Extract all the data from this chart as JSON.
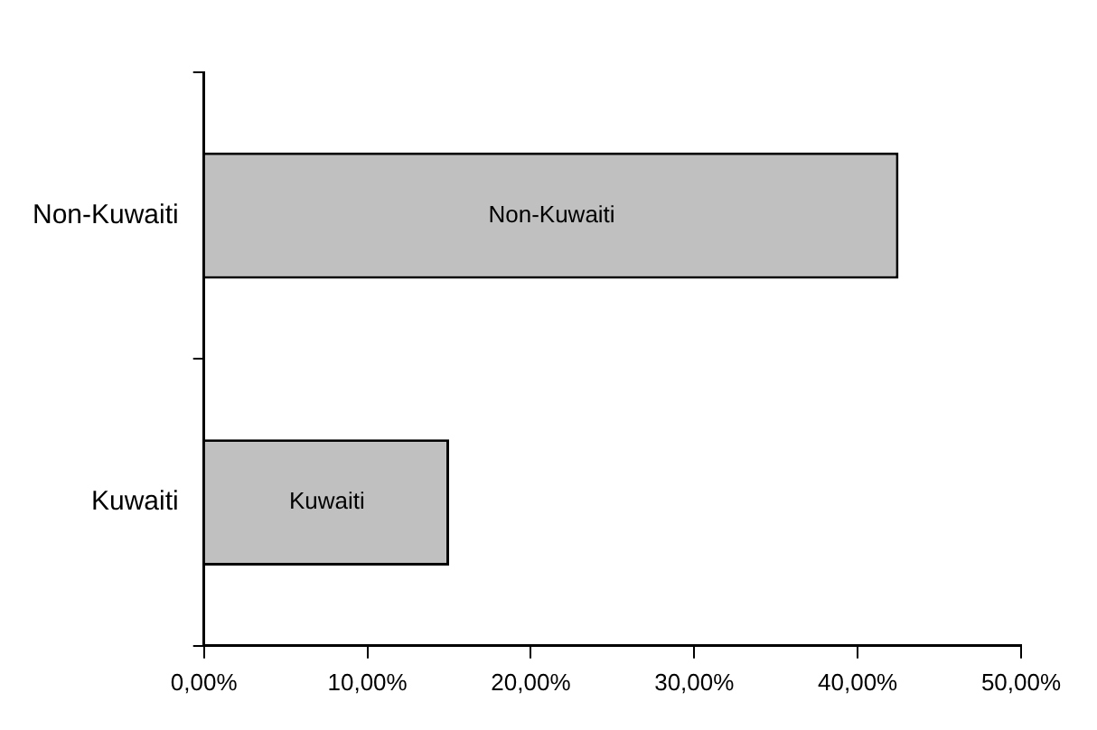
{
  "chart_data": {
    "type": "bar",
    "orientation": "horizontal",
    "categories": [
      "Non-Kuwaiti",
      "Kuwaiti"
    ],
    "values": [
      42.5,
      15.0
    ],
    "color": "#c0c0c0",
    "value_labels": [
      "Non-Kuwaiti",
      "Kuwaiti"
    ],
    "xlim": [
      0,
      50
    ],
    "xticks": [
      {
        "value": 0,
        "label": "0,00%"
      },
      {
        "value": 10,
        "label": "10,00%"
      },
      {
        "value": 20,
        "label": "20,00%"
      },
      {
        "value": 30,
        "label": "30,00%"
      },
      {
        "value": 40,
        "label": "40,00%"
      },
      {
        "value": 50,
        "label": "50,00%"
      }
    ],
    "grid": false,
    "legend": false
  }
}
